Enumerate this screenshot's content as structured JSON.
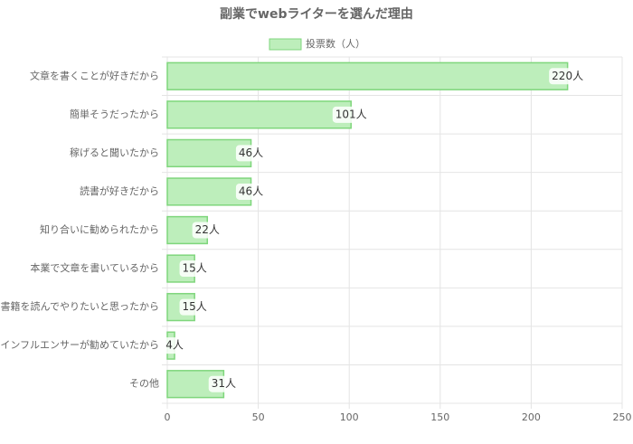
{
  "chart_data": {
    "type": "bar",
    "orientation": "horizontal",
    "title": "副業でwebライターを選んだ理由",
    "categories": [
      "文章を書くことが好きだから",
      "簡単そうだったから",
      "稼げると聞いたから",
      "読書が好きだから",
      "知り合いに勧められたから",
      "本業で文章を書いているから",
      "書籍を読んでやりたいと思ったから",
      "インフルエンサーが勧めていたから",
      "その他"
    ],
    "series": [
      {
        "name": "投票数（人）",
        "color": "#bdeebb",
        "border_color": "#7fd67c",
        "values": [
          220,
          101,
          46,
          46,
          22,
          15,
          15,
          4,
          31
        ],
        "value_labels": [
          "220人",
          "101人",
          "46人",
          "46人",
          "22人",
          "15人",
          "15人",
          "4人",
          "31人"
        ]
      }
    ],
    "xlim": [
      0,
      250
    ],
    "xticks": [
      0,
      50,
      100,
      150,
      200,
      250
    ],
    "grid": true,
    "legend": "top"
  }
}
